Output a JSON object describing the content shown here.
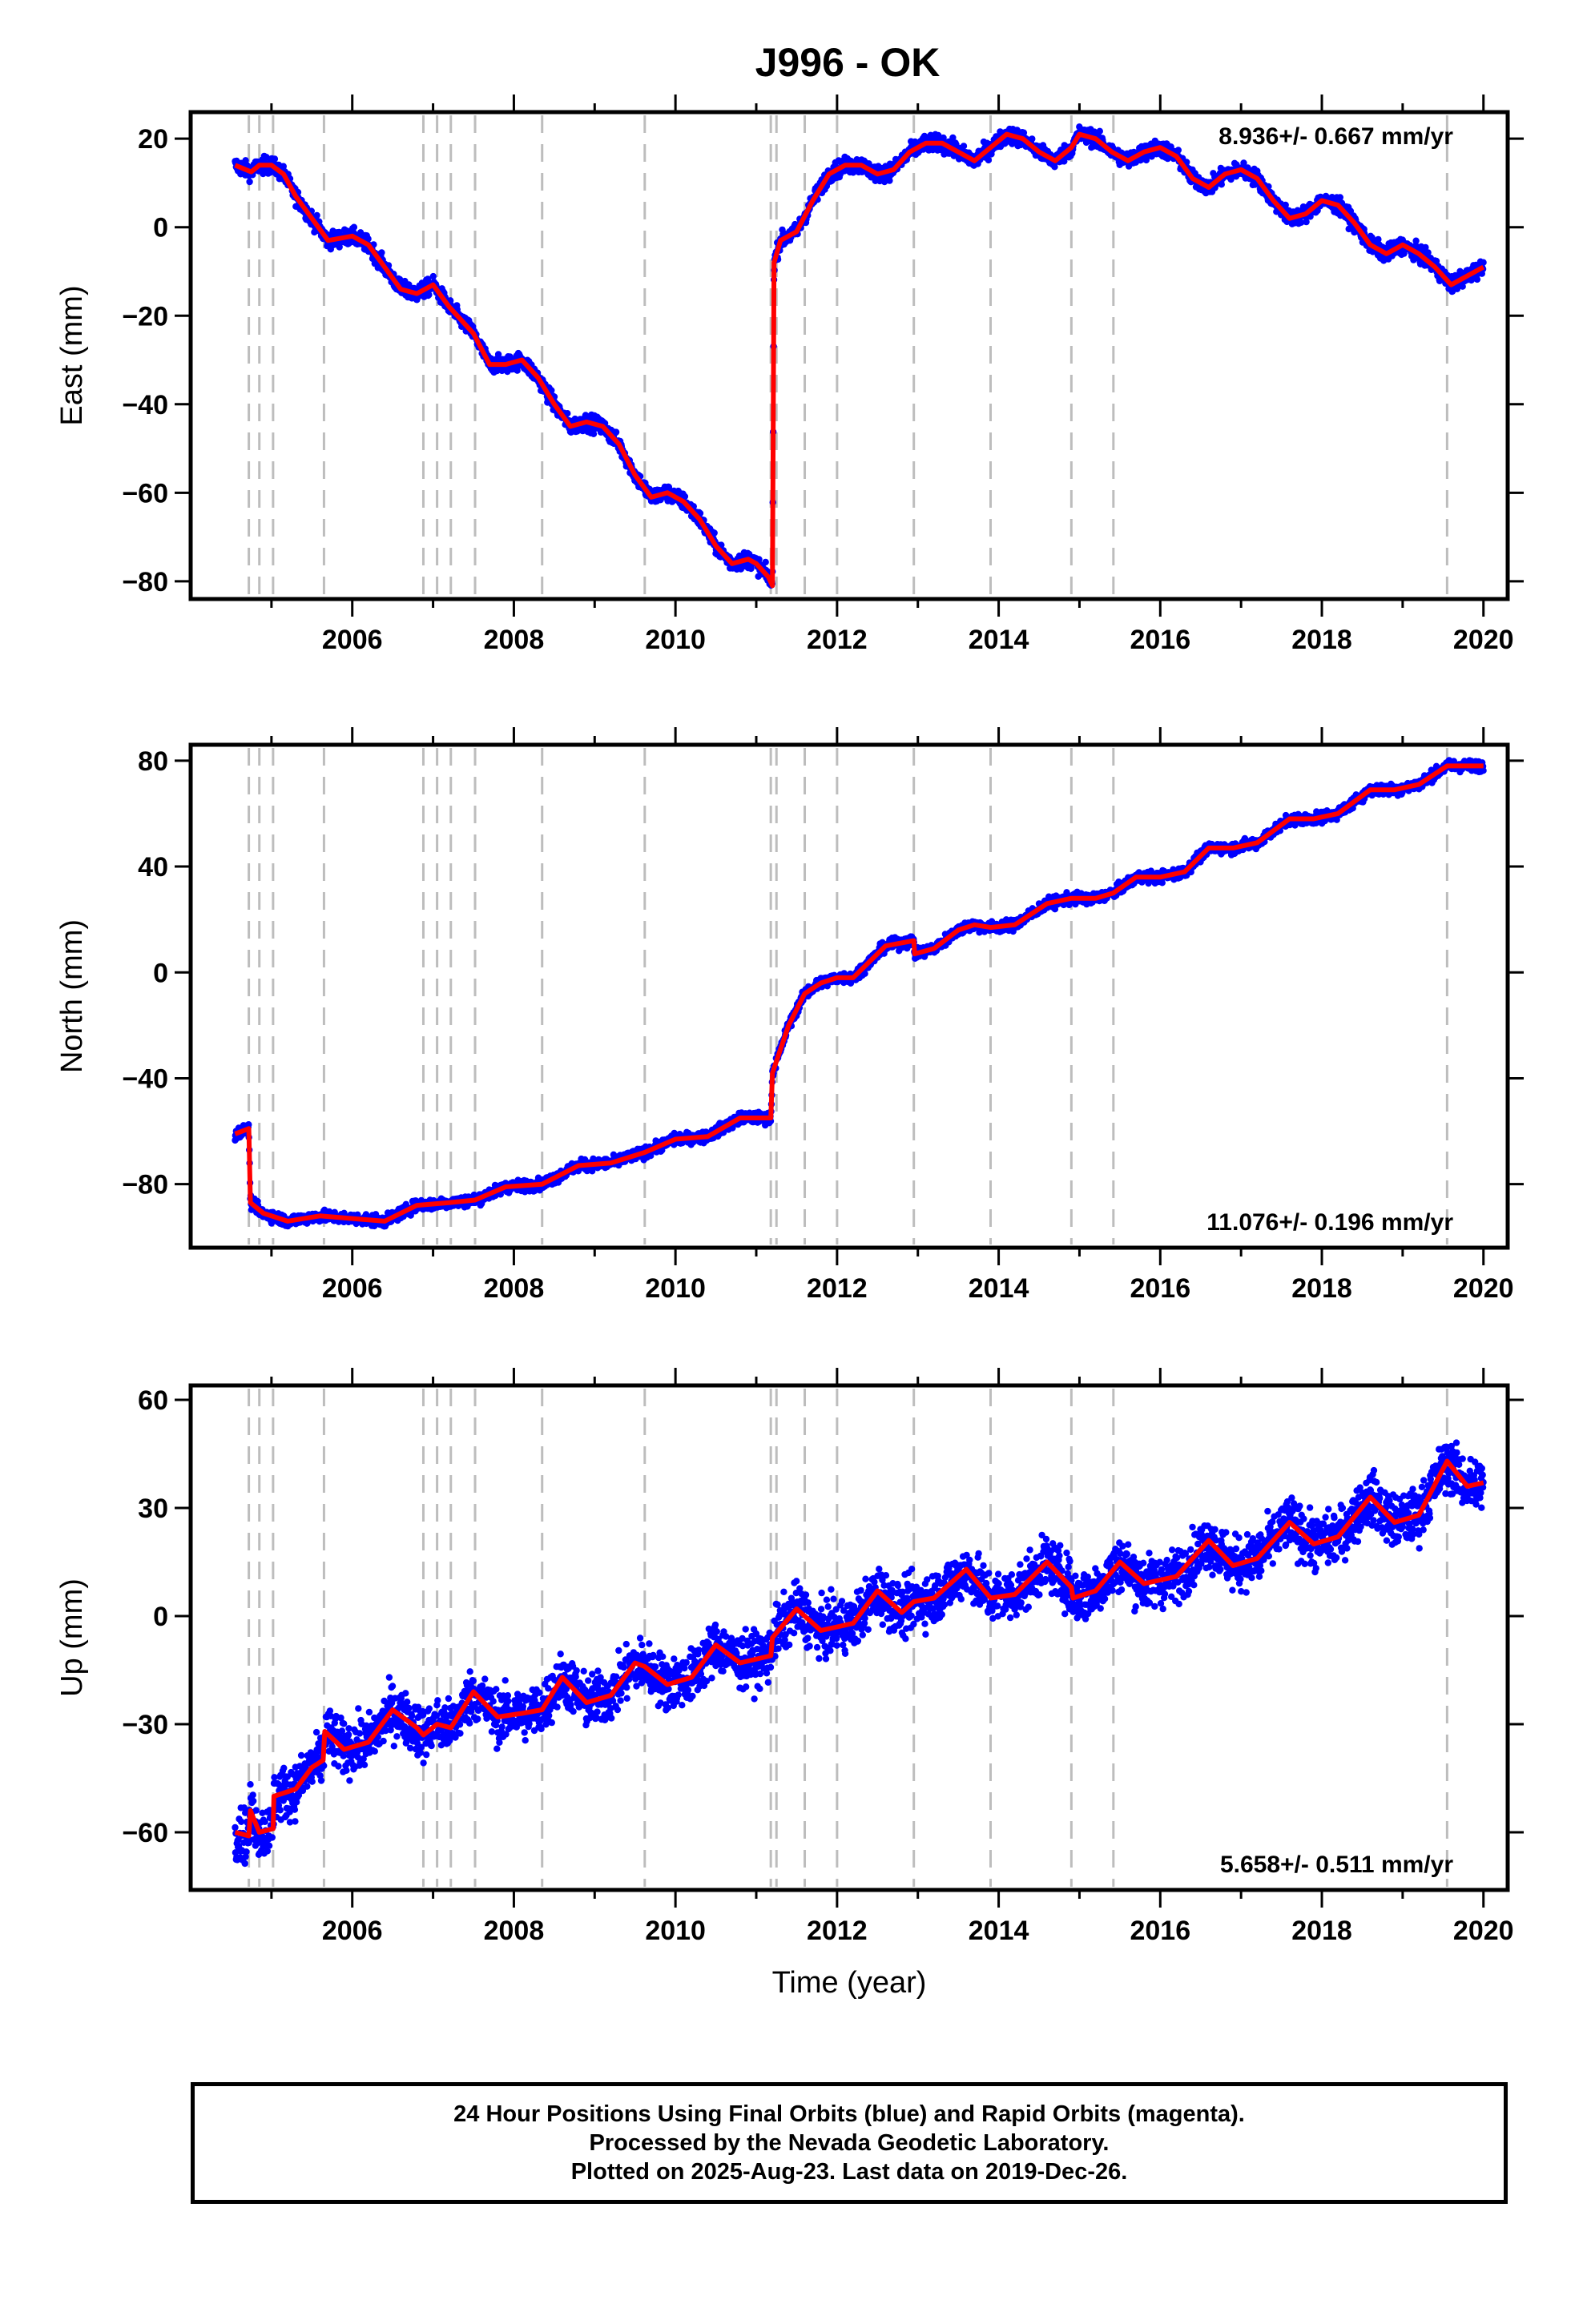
{
  "title": "J996 - OK",
  "colors": {
    "data_points": "#0000ff",
    "model": "#ff0000",
    "event_lines": "#bdbdbd",
    "frame": "#000000"
  },
  "caption": {
    "line1": "24 Hour Positions Using Final Orbits (blue) and Rapid Orbits (magenta).",
    "line2": "Processed by the Nevada Geodetic Laboratory.",
    "line3": "Plotted on 2025-Aug-23. Last data on 2019-Dec-26."
  },
  "chart_data": [
    {
      "type": "scatter",
      "component": "East",
      "ylabel": "East (mm)",
      "xlabel": "",
      "xlim": [
        2004.0,
        2020.3
      ],
      "ylim": [
        -84,
        26
      ],
      "x_ticks": [
        2006,
        2008,
        2010,
        2012,
        2014,
        2016,
        2018,
        2020
      ],
      "x_tick_labels": [
        "2006",
        "2008",
        "2010",
        "2012",
        "2014",
        "2016",
        "2018",
        "2020"
      ],
      "y_ticks": [
        -80,
        -60,
        -40,
        -20,
        0,
        20
      ],
      "y_tick_labels": [
        "−80",
        "−60",
        "−40",
        "−20",
        "0",
        "20"
      ],
      "rate_label": "8.936+/- 0.667 mm/yr",
      "rate_label_position": "top-right",
      "event_lines": [
        2004.72,
        2004.85,
        2005.02,
        2005.65,
        2006.88,
        2007.05,
        2007.22,
        2007.52,
        2008.35,
        2009.62,
        2011.18,
        2011.25,
        2011.6,
        2012.0,
        2012.95,
        2013.9,
        2014.9,
        2015.42,
        2019.55
      ],
      "series": [
        {
          "label": "Model",
          "points": [
            [
              2004.55,
              14
            ],
            [
              2004.75,
              12.5
            ],
            [
              2004.85,
              14
            ],
            [
              2005.0,
              14
            ],
            [
              2005.15,
              12
            ],
            [
              2005.3,
              7
            ],
            [
              2005.5,
              2
            ],
            [
              2005.7,
              -3
            ],
            [
              2006.0,
              -2
            ],
            [
              2006.2,
              -4
            ],
            [
              2006.4,
              -9
            ],
            [
              2006.6,
              -14
            ],
            [
              2006.8,
              -15
            ],
            [
              2007.0,
              -13
            ],
            [
              2007.2,
              -18
            ],
            [
              2007.5,
              -24
            ],
            [
              2007.7,
              -31
            ],
            [
              2007.9,
              -31
            ],
            [
              2008.1,
              -30
            ],
            [
              2008.3,
              -34
            ],
            [
              2008.5,
              -40
            ],
            [
              2008.7,
              -45
            ],
            [
              2008.9,
              -44
            ],
            [
              2009.1,
              -45
            ],
            [
              2009.3,
              -49
            ],
            [
              2009.5,
              -56
            ],
            [
              2009.7,
              -61
            ],
            [
              2009.9,
              -60
            ],
            [
              2010.1,
              -62
            ],
            [
              2010.3,
              -66
            ],
            [
              2010.5,
              -72
            ],
            [
              2010.7,
              -76
            ],
            [
              2010.9,
              -75
            ],
            [
              2011.0,
              -76
            ],
            [
              2011.15,
              -79
            ],
            [
              2011.2,
              -81
            ],
            [
              2011.22,
              -8
            ],
            [
              2011.3,
              -3
            ],
            [
              2011.5,
              -1
            ],
            [
              2011.7,
              6
            ],
            [
              2011.9,
              12
            ],
            [
              2012.1,
              14
            ],
            [
              2012.3,
              14
            ],
            [
              2012.5,
              12
            ],
            [
              2012.7,
              13
            ],
            [
              2012.9,
              17
            ],
            [
              2013.1,
              19
            ],
            [
              2013.3,
              19
            ],
            [
              2013.5,
              17
            ],
            [
              2013.7,
              15
            ],
            [
              2013.9,
              18
            ],
            [
              2014.1,
              21
            ],
            [
              2014.3,
              20
            ],
            [
              2014.5,
              17
            ],
            [
              2014.7,
              15
            ],
            [
              2014.9,
              18
            ],
            [
              2015.0,
              21
            ],
            [
              2015.2,
              20
            ],
            [
              2015.4,
              17
            ],
            [
              2015.6,
              15
            ],
            [
              2015.8,
              17
            ],
            [
              2016.0,
              18
            ],
            [
              2016.2,
              16
            ],
            [
              2016.4,
              11
            ],
            [
              2016.6,
              9
            ],
            [
              2016.8,
              12
            ],
            [
              2017.0,
              13
            ],
            [
              2017.2,
              11
            ],
            [
              2017.4,
              6
            ],
            [
              2017.6,
              2
            ],
            [
              2017.8,
              3
            ],
            [
              2018.0,
              6
            ],
            [
              2018.2,
              5
            ],
            [
              2018.4,
              1
            ],
            [
              2018.6,
              -4
            ],
            [
              2018.8,
              -6
            ],
            [
              2019.0,
              -4
            ],
            [
              2019.2,
              -6
            ],
            [
              2019.4,
              -9
            ],
            [
              2019.6,
              -13
            ],
            [
              2019.8,
              -11
            ],
            [
              2020.0,
              -9
            ]
          ]
        }
      ]
    },
    {
      "type": "scatter",
      "component": "North",
      "ylabel": "North (mm)",
      "xlabel": "",
      "xlim": [
        2004.0,
        2020.3
      ],
      "ylim": [
        -104,
        86
      ],
      "x_ticks": [
        2006,
        2008,
        2010,
        2012,
        2014,
        2016,
        2018,
        2020
      ],
      "x_tick_labels": [
        "2006",
        "2008",
        "2010",
        "2012",
        "2014",
        "2016",
        "2018",
        "2020"
      ],
      "y_ticks": [
        -80,
        -40,
        0,
        40,
        80
      ],
      "y_tick_labels": [
        "−80",
        "−40",
        "0",
        "40",
        "80"
      ],
      "rate_label": "11.076+/- 0.196 mm/yr",
      "rate_label_position": "bottom-right",
      "event_lines": [
        2004.72,
        2004.85,
        2005.02,
        2005.65,
        2006.88,
        2007.05,
        2007.22,
        2007.52,
        2008.35,
        2009.62,
        2011.18,
        2011.25,
        2011.6,
        2012.0,
        2012.95,
        2013.9,
        2014.9,
        2015.42,
        2019.55
      ],
      "series": [
        {
          "label": "Model",
          "points": [
            [
              2004.55,
              -61
            ],
            [
              2004.72,
              -59
            ],
            [
              2004.74,
              -87
            ],
            [
              2004.9,
              -91
            ],
            [
              2005.2,
              -94
            ],
            [
              2005.6,
              -92
            ],
            [
              2006.0,
              -93
            ],
            [
              2006.4,
              -94
            ],
            [
              2006.8,
              -88
            ],
            [
              2007.2,
              -87
            ],
            [
              2007.52,
              -86
            ],
            [
              2007.9,
              -81
            ],
            [
              2008.35,
              -80
            ],
            [
              2008.8,
              -73
            ],
            [
              2009.2,
              -72
            ],
            [
              2009.62,
              -68
            ],
            [
              2010.0,
              -63
            ],
            [
              2010.4,
              -62
            ],
            [
              2010.8,
              -55
            ],
            [
              2011.18,
              -55
            ],
            [
              2011.2,
              -38
            ],
            [
              2011.4,
              -20
            ],
            [
              2011.6,
              -8
            ],
            [
              2011.8,
              -4
            ],
            [
              2012.0,
              -2
            ],
            [
              2012.2,
              -2
            ],
            [
              2012.4,
              4
            ],
            [
              2012.6,
              10
            ],
            [
              2012.95,
              12
            ],
            [
              2012.96,
              7
            ],
            [
              2013.2,
              9
            ],
            [
              2013.5,
              16
            ],
            [
              2013.7,
              18
            ],
            [
              2013.9,
              17
            ],
            [
              2014.2,
              18
            ],
            [
              2014.6,
              26
            ],
            [
              2014.9,
              28
            ],
            [
              2015.2,
              28
            ],
            [
              2015.42,
              30
            ],
            [
              2015.7,
              36
            ],
            [
              2016.0,
              36
            ],
            [
              2016.3,
              38
            ],
            [
              2016.6,
              47
            ],
            [
              2016.9,
              47
            ],
            [
              2017.2,
              49
            ],
            [
              2017.6,
              58
            ],
            [
              2017.9,
              58
            ],
            [
              2018.2,
              60
            ],
            [
              2018.6,
              69
            ],
            [
              2018.9,
              69
            ],
            [
              2019.2,
              71
            ],
            [
              2019.55,
              78
            ],
            [
              2019.8,
              78
            ],
            [
              2020.0,
              78
            ]
          ]
        }
      ]
    },
    {
      "type": "scatter",
      "component": "Up",
      "ylabel": "Up (mm)",
      "xlabel": "Time (year)",
      "xlim": [
        2004.0,
        2020.3
      ],
      "ylim": [
        -76,
        64
      ],
      "x_ticks": [
        2006,
        2008,
        2010,
        2012,
        2014,
        2016,
        2018,
        2020
      ],
      "x_tick_labels": [
        "2006",
        "2008",
        "2010",
        "2012",
        "2014",
        "2016",
        "2018",
        "2020"
      ],
      "y_ticks": [
        -60,
        -30,
        0,
        30,
        60
      ],
      "y_tick_labels": [
        "−60",
        "−30",
        "0",
        "30",
        "60"
      ],
      "rate_label": "5.658+/- 0.511 mm/yr",
      "rate_label_position": "bottom-right",
      "event_lines": [
        2004.72,
        2004.85,
        2005.02,
        2005.65,
        2006.88,
        2007.05,
        2007.22,
        2007.52,
        2008.35,
        2009.62,
        2011.18,
        2011.25,
        2011.6,
        2012.0,
        2012.95,
        2013.9,
        2014.9,
        2015.42,
        2019.55
      ],
      "series": [
        {
          "label": "Model",
          "points": [
            [
              2004.55,
              -60
            ],
            [
              2004.72,
              -61
            ],
            [
              2004.74,
              -54
            ],
            [
              2004.85,
              -60
            ],
            [
              2005.02,
              -59
            ],
            [
              2005.03,
              -50
            ],
            [
              2005.3,
              -48
            ],
            [
              2005.5,
              -42
            ],
            [
              2005.64,
              -40
            ],
            [
              2005.66,
              -32
            ],
            [
              2005.9,
              -37
            ],
            [
              2006.2,
              -35
            ],
            [
              2006.5,
              -26
            ],
            [
              2006.8,
              -31
            ],
            [
              2006.88,
              -33
            ],
            [
              2007.05,
              -30
            ],
            [
              2007.22,
              -31
            ],
            [
              2007.5,
              -21
            ],
            [
              2007.8,
              -28
            ],
            [
              2008.1,
              -27
            ],
            [
              2008.35,
              -26
            ],
            [
              2008.6,
              -17
            ],
            [
              2008.9,
              -24
            ],
            [
              2009.2,
              -22
            ],
            [
              2009.5,
              -13
            ],
            [
              2009.62,
              -14
            ],
            [
              2009.9,
              -19
            ],
            [
              2010.2,
              -17
            ],
            [
              2010.5,
              -8
            ],
            [
              2010.8,
              -13
            ],
            [
              2011.18,
              -11
            ],
            [
              2011.2,
              -6
            ],
            [
              2011.5,
              2
            ],
            [
              2011.8,
              -4
            ],
            [
              2012.0,
              -3
            ],
            [
              2012.2,
              -2
            ],
            [
              2012.5,
              7
            ],
            [
              2012.8,
              1
            ],
            [
              2012.95,
              4
            ],
            [
              2013.2,
              5
            ],
            [
              2013.6,
              13
            ],
            [
              2013.9,
              5
            ],
            [
              2014.2,
              6
            ],
            [
              2014.6,
              15
            ],
            [
              2014.9,
              8
            ],
            [
              2014.92,
              5
            ],
            [
              2015.2,
              7
            ],
            [
              2015.5,
              15
            ],
            [
              2015.8,
              9
            ],
            [
              2016.2,
              11
            ],
            [
              2016.6,
              21
            ],
            [
              2016.9,
              14
            ],
            [
              2017.2,
              16
            ],
            [
              2017.6,
              26
            ],
            [
              2017.9,
              20
            ],
            [
              2018.2,
              22
            ],
            [
              2018.6,
              33
            ],
            [
              2018.9,
              26
            ],
            [
              2019.2,
              28
            ],
            [
              2019.55,
              43
            ],
            [
              2019.8,
              36
            ],
            [
              2020.0,
              37
            ]
          ]
        }
      ]
    }
  ]
}
